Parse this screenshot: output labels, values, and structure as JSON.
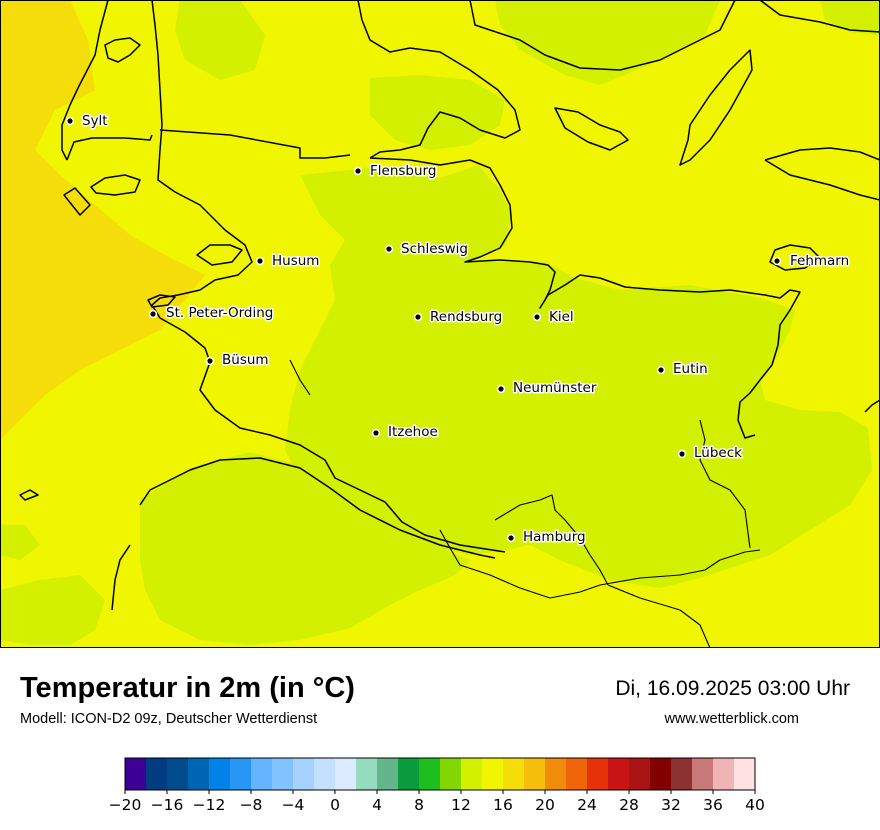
{
  "map": {
    "cities": [
      {
        "name": "Sylt"
      },
      {
        "name": "Flensburg"
      },
      {
        "name": "Schleswig"
      },
      {
        "name": "Husum"
      },
      {
        "name": "Fehmarn"
      },
      {
        "name": "St. Peter-Ording"
      },
      {
        "name": "Rendsburg"
      },
      {
        "name": "Kiel"
      },
      {
        "name": "Büsum"
      },
      {
        "name": "Eutin"
      },
      {
        "name": "Neumünster"
      },
      {
        "name": "Itzehoe"
      },
      {
        "name": "Lübeck"
      },
      {
        "name": "Hamburg"
      }
    ],
    "field_colors": {
      "t14_16": "#d2f000",
      "t16_18": "#f0f500",
      "t18_20": "#f5dd0a",
      "coast": "#000000"
    }
  },
  "header": {
    "title": "Temperatur in 2m (in °C)",
    "subtitle": "Modell: ICON-D2 09z, Deutscher Wetterdienst",
    "datetime": "Di, 16.09.2025 03:00 Uhr",
    "website": "www.wetterblick.com"
  },
  "legend": {
    "colors": [
      "#3c0096",
      "#003c82",
      "#004b8c",
      "#0064b4",
      "#0082e6",
      "#2896f5",
      "#64b4ff",
      "#82c3ff",
      "#a5d2ff",
      "#c3e1ff",
      "#dcebff",
      "#96dcbe",
      "#64b48c",
      "#0a9b3c",
      "#1ebe1e",
      "#82d700",
      "#d2f000",
      "#f0f500",
      "#f5dd0a",
      "#f5be0a",
      "#f08c0a",
      "#f0640a",
      "#e63208",
      "#c81414",
      "#aa1414",
      "#820000",
      "#8c3232",
      "#c87878",
      "#f0b4b4",
      "#ffe1e1"
    ],
    "tick_labels": [
      "−20",
      "−16",
      "−12",
      "−8",
      "−4",
      "0",
      "4",
      "8",
      "12",
      "16",
      "20",
      "24",
      "28",
      "32",
      "36",
      "40"
    ]
  }
}
